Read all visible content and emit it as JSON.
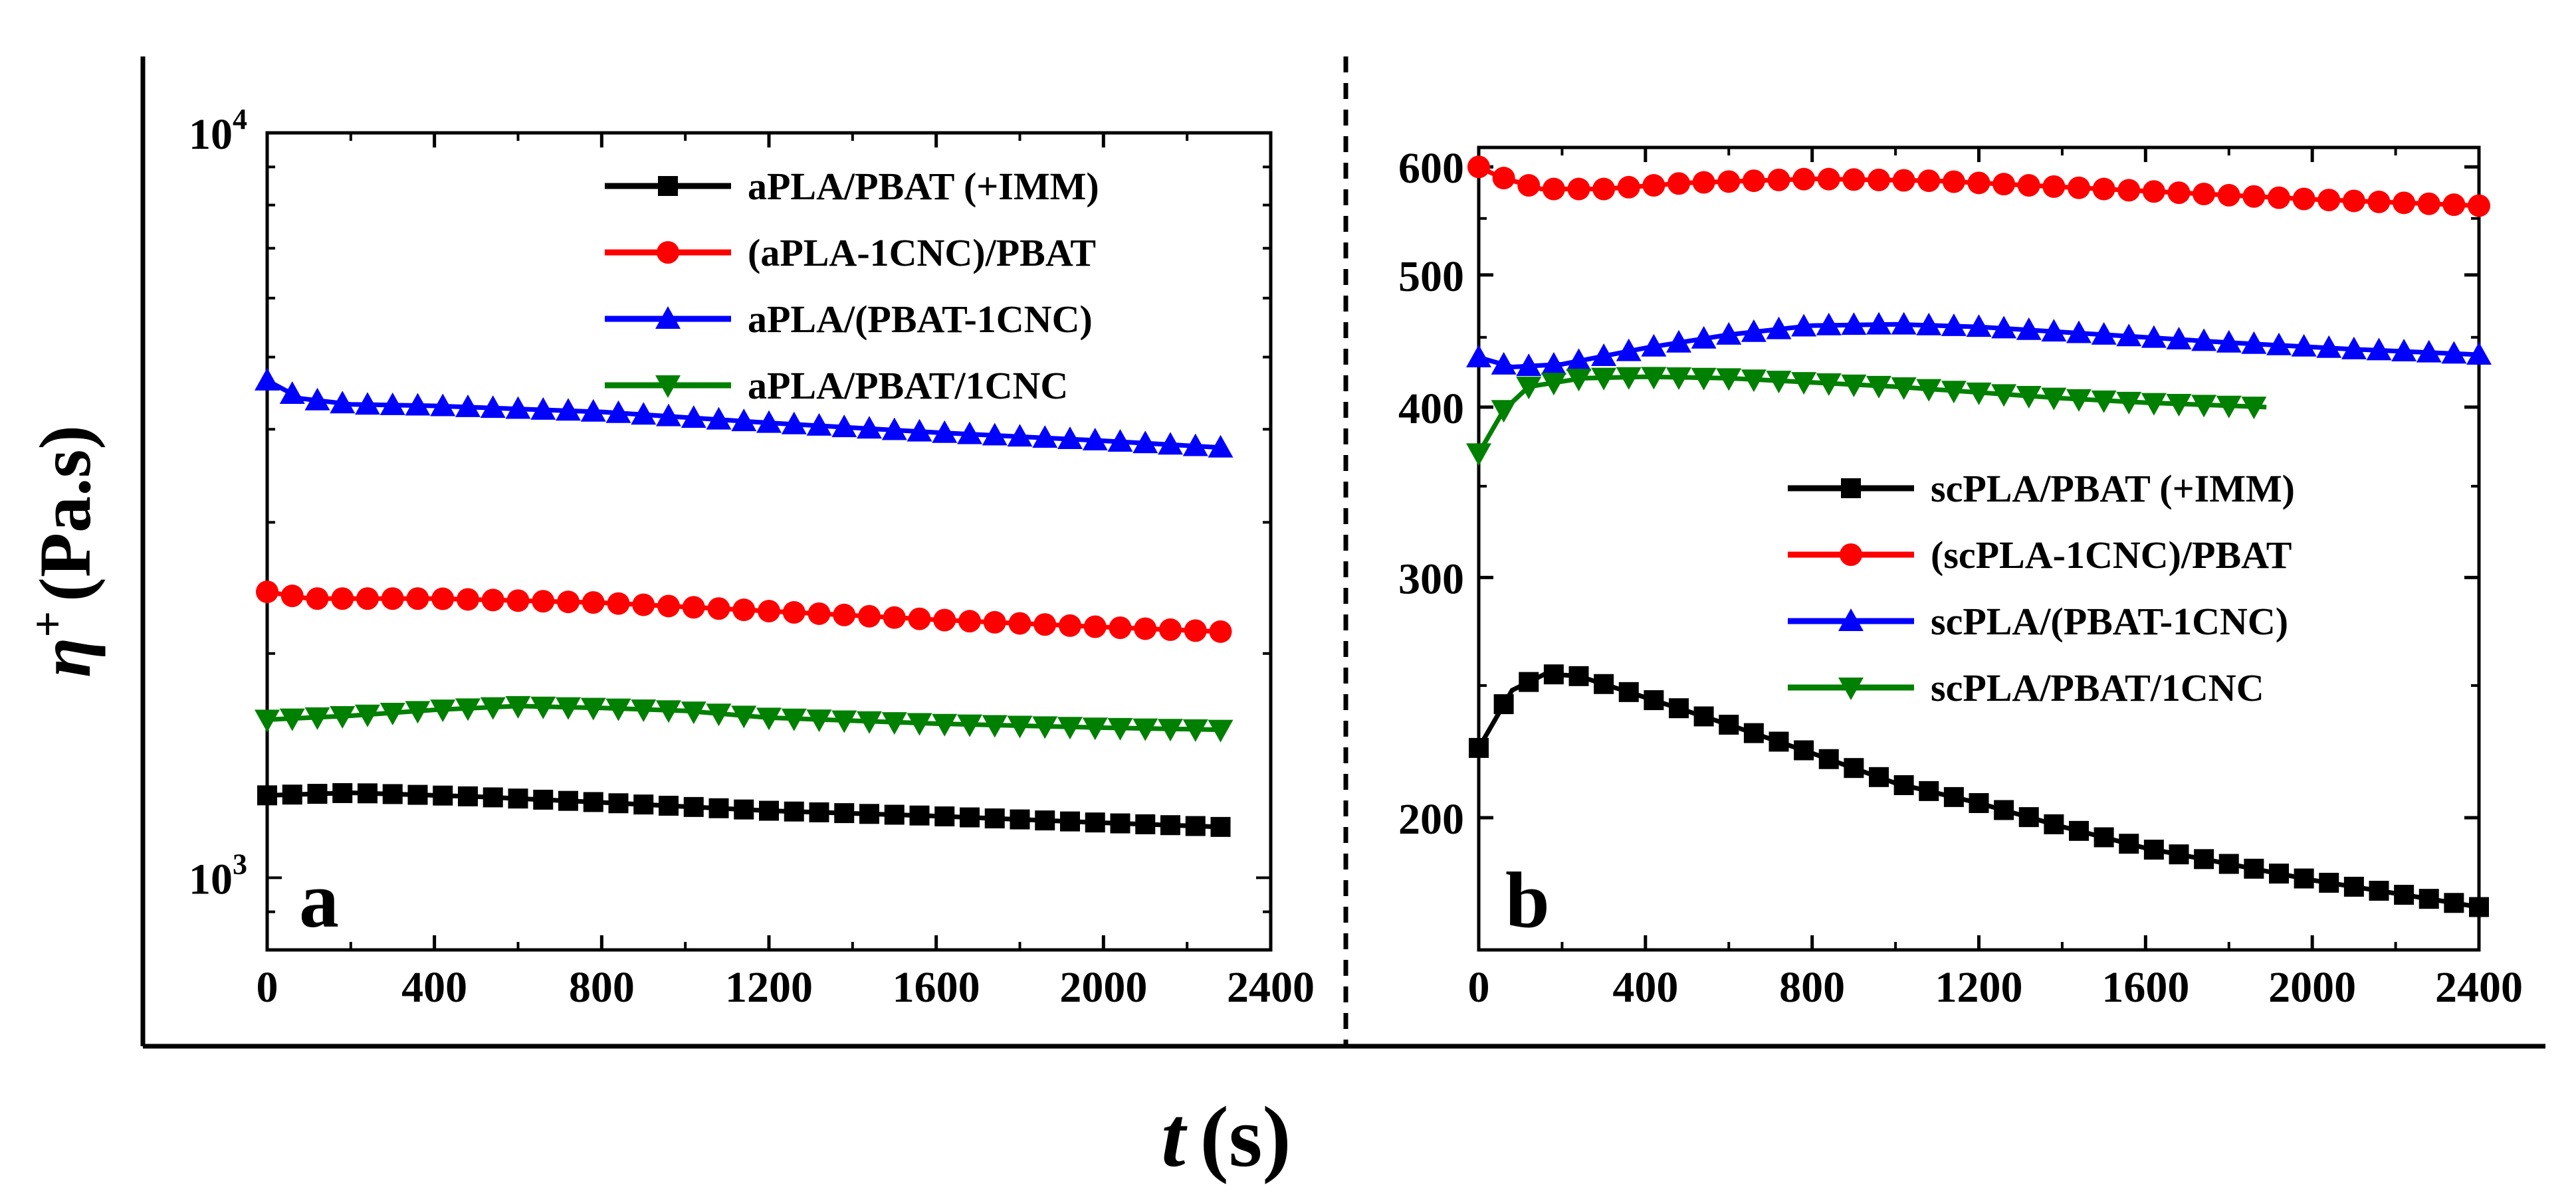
{
  "figure": {
    "ylabel": {
      "symbol": "η",
      "superscript": "+",
      "unit": "(Pa.s)"
    },
    "xlabel": {
      "symbol": "t",
      "unit": "(s)"
    }
  },
  "chart_data": [
    {
      "type": "line",
      "panel_label": "a",
      "yscale": "log",
      "xlim": [
        0,
        2400
      ],
      "ylim": [
        800,
        10000
      ],
      "xticks": [
        0,
        400,
        800,
        1200,
        1600,
        2000,
        2400
      ],
      "xtick_labels": [
        "0",
        "400",
        "800",
        "1200",
        "1600",
        "2000",
        "2400"
      ],
      "ytick_labels": [
        {
          "base": "10",
          "exp": "3",
          "value": 1000
        },
        {
          "base": "10",
          "exp": "4",
          "value": 10000
        }
      ],
      "legend_position": "top-right",
      "series": [
        {
          "name": "aPLA/PBAT (+IMM)",
          "color": "#000000",
          "marker": "square",
          "points": [
            [
              0,
              1290
            ],
            [
              200,
              1300
            ],
            [
              500,
              1285
            ],
            [
              800,
              1262
            ],
            [
              1200,
              1230
            ],
            [
              1600,
              1210
            ],
            [
              2000,
              1185
            ],
            [
              2280,
              1170
            ]
          ]
        },
        {
          "name": "(aPLA-1CNC)/PBAT",
          "color": "#ff0000",
          "marker": "circle",
          "points": [
            [
              0,
              2420
            ],
            [
              100,
              2370
            ],
            [
              400,
              2370
            ],
            [
              800,
              2340
            ],
            [
              1200,
              2280
            ],
            [
              1600,
              2220
            ],
            [
              2000,
              2170
            ],
            [
              2280,
              2140
            ]
          ]
        },
        {
          "name": "aPLA/(PBAT-1CNC)",
          "color": "#0000ff",
          "marker": "triangle-up",
          "points": [
            [
              0,
              4650
            ],
            [
              80,
              4400
            ],
            [
              200,
              4320
            ],
            [
              400,
              4300
            ],
            [
              800,
              4220
            ],
            [
              1200,
              4080
            ],
            [
              1600,
              3960
            ],
            [
              2000,
              3860
            ],
            [
              2280,
              3780
            ]
          ]
        },
        {
          "name": "aPLA/PBAT/1CNC",
          "color": "#008000",
          "marker": "triangle-down",
          "points": [
            [
              0,
              1630
            ],
            [
              200,
              1650
            ],
            [
              400,
              1680
            ],
            [
              600,
              1700
            ],
            [
              800,
              1690
            ],
            [
              1000,
              1675
            ],
            [
              1200,
              1640
            ],
            [
              1600,
              1610
            ],
            [
              2000,
              1590
            ],
            [
              2280,
              1580
            ]
          ]
        }
      ]
    },
    {
      "type": "line",
      "panel_label": "b",
      "yscale": "log",
      "xlim": [
        0,
        2400
      ],
      "ylim": [
        160,
        620
      ],
      "xticks": [
        0,
        400,
        800,
        1200,
        1600,
        2000,
        2400
      ],
      "xtick_labels": [
        "0",
        "400",
        "800",
        "1200",
        "1600",
        "2000",
        "2400"
      ],
      "yticks": [
        200,
        300,
        400,
        500,
        600
      ],
      "ytick_labels": [
        "200",
        "300",
        "400",
        "500",
        "600"
      ],
      "legend_position": "middle-right",
      "series": [
        {
          "name": "scPLA/PBAT (+IMM)",
          "color": "#000000",
          "marker": "square",
          "points": [
            [
              0,
              225
            ],
            [
              80,
              248
            ],
            [
              160,
              255
            ],
            [
              240,
              254
            ],
            [
              400,
              245
            ],
            [
              600,
              234
            ],
            [
              800,
              223
            ],
            [
              1000,
              212
            ],
            [
              1200,
              205
            ],
            [
              1400,
              197
            ],
            [
              1600,
              190
            ],
            [
              1800,
              185
            ],
            [
              2000,
              180
            ],
            [
              2200,
              176
            ],
            [
              2400,
              172
            ]
          ]
        },
        {
          "name": "(scPLA-1CNC)/PBAT",
          "color": "#ff0000",
          "marker": "circle",
          "points": [
            [
              0,
              600
            ],
            [
              50,
              590
            ],
            [
              150,
              578
            ],
            [
              300,
              578
            ],
            [
              500,
              584
            ],
            [
              800,
              588
            ],
            [
              1100,
              586
            ],
            [
              1400,
              580
            ],
            [
              1700,
              574
            ],
            [
              2000,
              568
            ],
            [
              2400,
              562
            ]
          ]
        },
        {
          "name": "scPLA/(PBAT-1CNC)",
          "color": "#0000ff",
          "marker": "triangle-up",
          "points": [
            [
              0,
              435
            ],
            [
              80,
              428
            ],
            [
              200,
              430
            ],
            [
              400,
              442
            ],
            [
              600,
              452
            ],
            [
              800,
              459
            ],
            [
              1000,
              460
            ],
            [
              1200,
              458
            ],
            [
              1500,
              452
            ],
            [
              1800,
              446
            ],
            [
              2100,
              441
            ],
            [
              2400,
              437
            ]
          ]
        },
        {
          "name": "scPLA/PBAT/1CNC",
          "color": "#008000",
          "marker": "triangle-down",
          "points": [
            [
              0,
              370
            ],
            [
              60,
              398
            ],
            [
              120,
              414
            ],
            [
              250,
              420
            ],
            [
              400,
              421
            ],
            [
              600,
              420
            ],
            [
              800,
              417
            ],
            [
              1000,
              414
            ],
            [
              1200,
              410
            ],
            [
              1400,
              406
            ],
            [
              1600,
              403
            ],
            [
              1890,
              400
            ]
          ]
        }
      ]
    }
  ]
}
